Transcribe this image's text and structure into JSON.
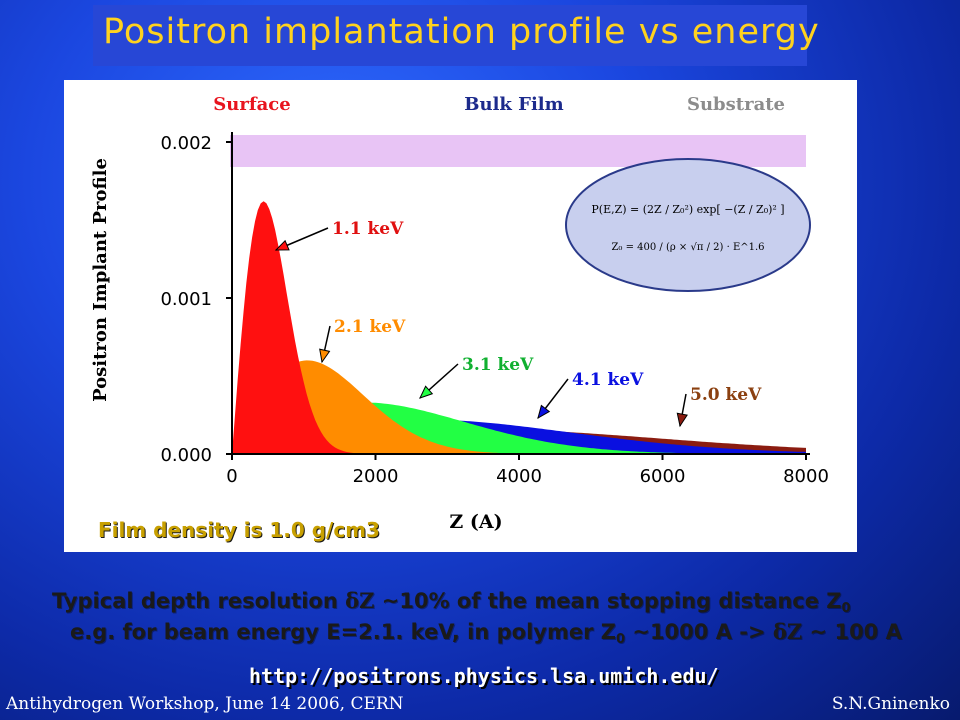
{
  "slide": {
    "title": "Positron implantation profile  vs  energy",
    "film_density": "Film  density is 1.0 g/cm3",
    "caption_line1_a": "Typical  depth resolution ",
    "caption_line1_b": " ~10% of the mean stopping distance Z",
    "caption_line1_sub": "0",
    "caption_line2_a": "e.g. for beam energy E=2.1. keV,  in polymer Z",
    "caption_line2_sub": "0",
    "caption_line2_b": " ~1000 A -> ",
    "caption_line2_c": " ~ 100 A",
    "delta_z": "δZ",
    "url": "http://positrons.physics.lsa.umich.edu/",
    "footer_left": "Antihydrogen Workshop, June 14 2006, CERN",
    "footer_right": "S.N.Gninenko"
  },
  "chart_data": {
    "type": "area",
    "ylabel": "Positron Implant Profile",
    "xlabel": "Z (A)",
    "xlim": [
      0,
      8000
    ],
    "ylim": [
      0,
      0.002
    ],
    "x_ticks": [
      "0",
      "2000",
      "4000",
      "6000",
      "8000"
    ],
    "y_ticks": [
      "0.000",
      "0.001",
      "0.002"
    ],
    "regions": [
      {
        "label": "Surface",
        "color": "#e8141e"
      },
      {
        "label": "Bulk Film",
        "color": "#1c2a8c"
      },
      {
        "label": "Substrate",
        "color": "#8c8c8c"
      }
    ],
    "substrate_band_color": "#e8c4f5",
    "series": [
      {
        "name": "1.1 keV",
        "energy_kev": 1.1,
        "peak_z": 440,
        "peak_y": 0.00162,
        "color": "#ff1010",
        "label_color": "#e01010"
      },
      {
        "name": "2.1 keV",
        "energy_kev": 2.1,
        "peak_z": 1050,
        "peak_y": 0.0006,
        "color": "#ff8c00",
        "label_color": "#ff8c00"
      },
      {
        "name": "3.1 keV",
        "energy_kev": 3.1,
        "peak_z": 1850,
        "peak_y": 0.00033,
        "color": "#22ff44",
        "label_color": "#10b030"
      },
      {
        "name": "4.1 keV",
        "energy_kev": 4.1,
        "peak_z": 2700,
        "peak_y": 0.00022,
        "color": "#0a10e0",
        "label_color": "#0a10e0"
      },
      {
        "name": "5.0 keV",
        "energy_kev": 5.0,
        "peak_z": 3400,
        "peak_y": 0.00016,
        "color": "#8b1c10",
        "label_color": "#8b4010"
      }
    ],
    "formula": {
      "line1": "P(E,Z) = (2Z / Z₀²) exp[ −(Z / Z₀)² ]",
      "line2": "Z₀ = 400 / (ρ × √π / 2) · E^1.6"
    }
  }
}
